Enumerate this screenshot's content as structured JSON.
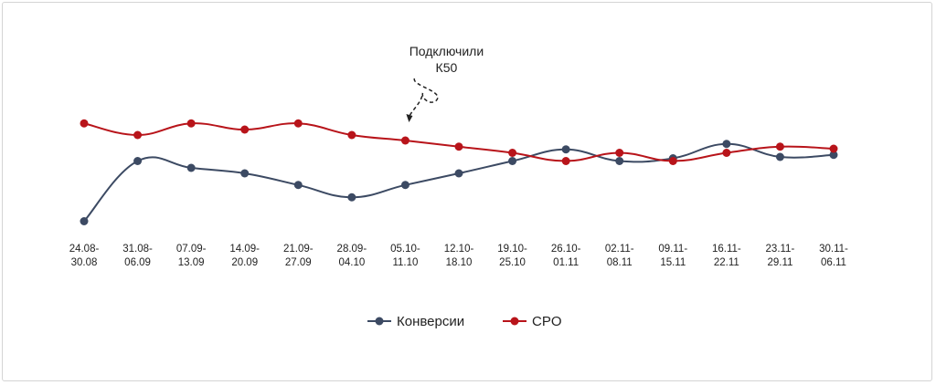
{
  "chart_data": {
    "type": "line",
    "categories": [
      [
        "24.08-",
        "30.08"
      ],
      [
        "31.08-",
        "06.09"
      ],
      [
        "07.09-",
        "13.09"
      ],
      [
        "14.09-",
        "20.09"
      ],
      [
        "21.09-",
        "27.09"
      ],
      [
        "28.09-",
        "04.10"
      ],
      [
        "05.10-",
        "11.10"
      ],
      [
        "12.10-",
        "18.10"
      ],
      [
        "19.10-",
        "25.10"
      ],
      [
        "26.10-",
        "01.11"
      ],
      [
        "02.11-",
        "08.11"
      ],
      [
        "09.11-",
        "15.11"
      ],
      [
        "16.11-",
        "22.11"
      ],
      [
        "23.11-",
        "29.11"
      ],
      [
        "30.11-",
        "06.11"
      ]
    ],
    "series": [
      {
        "name": "Конверсии",
        "color": "#3c4a63",
        "values": [
          1.0,
          9.8,
          8.8,
          8.0,
          6.3,
          4.5,
          6.3,
          8.0,
          9.8,
          11.5,
          9.8,
          10.2,
          12.3,
          10.4,
          10.7
        ]
      },
      {
        "name": "CPO",
        "color": "#b8141a",
        "values": [
          15.3,
          13.6,
          15.3,
          14.4,
          15.3,
          13.6,
          12.8,
          11.9,
          11.0,
          9.8,
          11.0,
          9.8,
          11.0,
          11.9,
          11.6
        ]
      }
    ],
    "ylim": [
      0,
      20
    ],
    "title": "",
    "xlabel": "",
    "ylabel": "",
    "grid": false,
    "legend": "bottom-center",
    "annotation": {
      "lines": [
        "Подключили",
        "К50"
      ],
      "category_index": 6
    }
  }
}
